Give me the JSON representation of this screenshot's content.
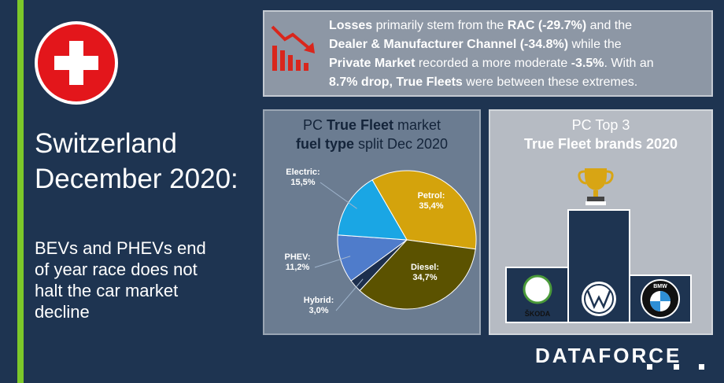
{
  "header": {
    "title": [
      "Switzerland",
      "December 2020:"
    ],
    "subtitle": [
      "BEVs and PHEVs end",
      "of year race does not",
      "halt the car market",
      "decline"
    ]
  },
  "summary": [
    [
      {
        "text": "Losses",
        "bold": true
      },
      {
        "text": " primarily stem from the "
      },
      {
        "text": "RAC (-29.7%)",
        "bold": true
      },
      {
        "text": " and the"
      }
    ],
    [
      {
        "text": "Dealer & Manufacturer Channel (-34.8%)",
        "bold": true
      },
      {
        "text": " while the"
      }
    ],
    [
      {
        "text": "Private Market",
        "bold": true
      },
      {
        "text": " recorded a more moderate "
      },
      {
        "text": "-3.5%",
        "bold": true
      },
      {
        "text": ". With an"
      }
    ],
    [
      {
        "text": "8.7% drop, True Fleets",
        "bold": true
      },
      {
        "text": " were between these extremes."
      }
    ]
  ],
  "chart_data": {
    "type": "pie",
    "title": [
      [
        {
          "text": "PC "
        },
        {
          "text": "True Fleet",
          "bold": true
        },
        {
          "text": " market"
        }
      ],
      [
        {
          "text": "fuel type",
          "bold": true
        },
        {
          "text": " split Dec 2020"
        }
      ]
    ],
    "categories": [
      "Petrol:",
      "Diesel:",
      "Hybrid:",
      "PHEV:",
      "Electric:"
    ],
    "values": [
      35.4,
      34.7,
      3.0,
      11.2,
      15.5
    ],
    "value_labels": [
      "35,4%",
      "34,7%",
      "3,0%",
      "11,2%",
      "15,5%"
    ],
    "colors": [
      "#d4a30c",
      "#5b5200",
      "#1d2f4d",
      "#4f7ccb",
      "#1aa6e4"
    ]
  },
  "podium": {
    "title": [
      [
        {
          "text": "PC Top 3"
        }
      ],
      [
        {
          "text": "True Fleet brands 2020",
          "bold": true
        }
      ]
    ],
    "brands": [
      "ŠKODA",
      "BMW"
    ]
  },
  "logo": "DATAFORCE"
}
